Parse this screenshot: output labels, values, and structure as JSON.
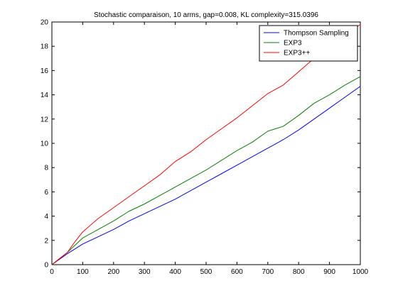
{
  "chart_data": {
    "type": "line",
    "title": "Stochastic comparaison, 10 arms, gap=0.008, KL complexity=315.0396",
    "xlabel": "",
    "ylabel": "",
    "xlim": [
      0,
      1000
    ],
    "ylim": [
      0,
      20
    ],
    "xticks": [
      0,
      100,
      200,
      300,
      400,
      500,
      600,
      700,
      800,
      900,
      1000
    ],
    "yticks": [
      0,
      2,
      4,
      6,
      8,
      10,
      12,
      14,
      16,
      18,
      20
    ],
    "grid": false,
    "legend_position": "top-right",
    "x": [
      0,
      25,
      50,
      75,
      100,
      150,
      200,
      250,
      300,
      350,
      400,
      450,
      500,
      550,
      600,
      650,
      700,
      750,
      800,
      850,
      900,
      950,
      1000
    ],
    "series": [
      {
        "name": "Thompson Sampling",
        "color": "#0000ff",
        "values": [
          0,
          0.45,
          0.9,
          1.3,
          1.7,
          2.3,
          2.9,
          3.6,
          4.2,
          4.8,
          5.4,
          6.1,
          6.8,
          7.5,
          8.2,
          8.9,
          9.6,
          10.3,
          11.1,
          12.0,
          12.9,
          13.8,
          14.7
        ]
      },
      {
        "name": "EXP3",
        "color": "#008000",
        "values": [
          0,
          0.5,
          1.0,
          1.6,
          2.2,
          2.9,
          3.6,
          4.4,
          5.0,
          5.7,
          6.4,
          7.1,
          7.8,
          8.6,
          9.4,
          10.1,
          11.0,
          11.4,
          12.3,
          13.3,
          14.0,
          14.8,
          15.5
        ]
      },
      {
        "name": "EXP3++",
        "color": "#ff0000",
        "values": [
          0,
          0.5,
          1.0,
          1.9,
          2.7,
          3.8,
          4.7,
          5.6,
          6.5,
          7.4,
          8.5,
          9.3,
          10.3,
          11.2,
          12.1,
          13.1,
          14.1,
          14.8,
          15.9,
          17.0,
          18.0,
          18.9,
          19.8
        ]
      }
    ]
  }
}
